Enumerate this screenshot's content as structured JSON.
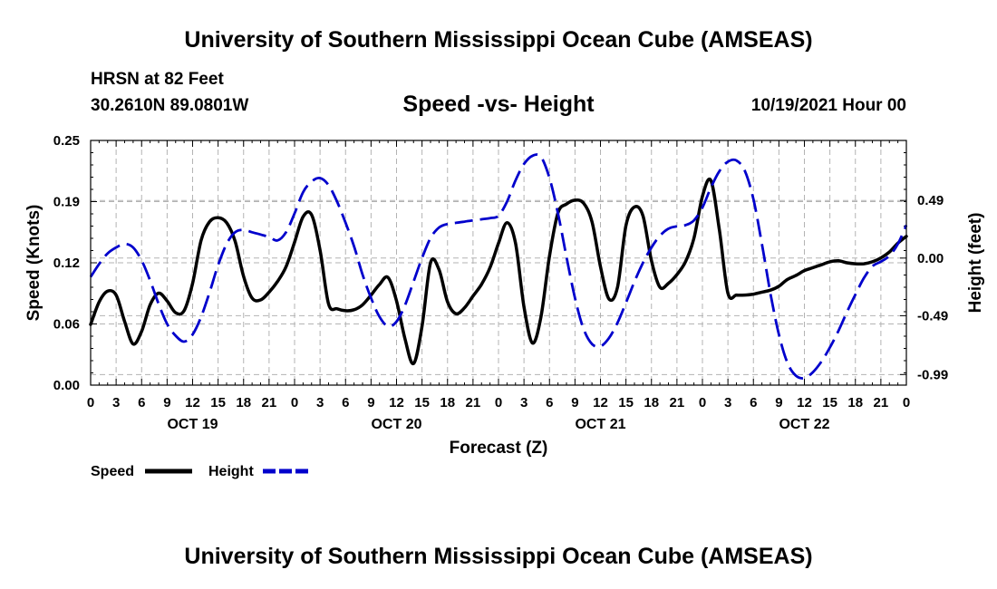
{
  "page": {
    "title": "University of Southern Mississippi Ocean Cube (AMSEAS)",
    "title_bottom": "University of Southern Mississippi Ocean Cube (AMSEAS)",
    "station": "HRSN at 82 Feet",
    "coords": "30.2610N  89.0801W",
    "subtitle": "Speed -vs- Height",
    "datetime": "10/19/2021 Hour 00"
  },
  "chart_data": {
    "type": "line",
    "title": "Speed -vs- Height",
    "xlabel": "Forecast (Z)",
    "ylabel": "Speed (Knots)",
    "y2label": "Height (feet)",
    "x_range_hours": [
      0,
      96
    ],
    "ylim": [
      0,
      0.25
    ],
    "y2lim": [
      -1.08,
      1.0
    ],
    "x_tick_labels": [
      "0",
      "3",
      "6",
      "9",
      "12",
      "15",
      "18",
      "21",
      "0",
      "3",
      "6",
      "9",
      "12",
      "15",
      "18",
      "21",
      "0",
      "3",
      "6",
      "9",
      "12",
      "15",
      "18",
      "21",
      "0",
      "3",
      "6",
      "9",
      "12",
      "15",
      "18",
      "21",
      "0"
    ],
    "day_labels": [
      {
        "label": "OCT 19",
        "hour": 12
      },
      {
        "label": "OCT 20",
        "hour": 36
      },
      {
        "label": "OCT 21",
        "hour": 60
      },
      {
        "label": "OCT 22",
        "hour": 84
      }
    ],
    "y_ticks": [
      "0.00",
      "0.06",
      "0.12",
      "0.19",
      "0.25"
    ],
    "y_tick_values": [
      0.0,
      0.0625,
      0.125,
      0.1875,
      0.25
    ],
    "y2_ticks": [
      "-0.99",
      "-0.49",
      "0.00",
      "0.49"
    ],
    "y2_tick_values": [
      -0.99,
      -0.49,
      0.0,
      0.49
    ],
    "legend": [
      "Speed",
      "Height"
    ],
    "series": [
      {
        "name": "Speed",
        "color": "#000000",
        "axis": "left",
        "x": [
          0,
          1,
          2,
          3,
          4,
          5,
          6,
          7,
          8,
          9,
          10,
          11,
          12,
          13,
          14,
          15,
          16,
          17,
          18,
          19,
          20,
          21,
          22,
          23,
          24,
          25,
          26,
          27,
          28,
          29,
          30,
          31,
          32,
          33,
          34,
          35,
          36,
          37,
          38,
          39,
          40,
          41,
          42,
          43,
          44,
          45,
          46,
          47,
          48,
          49,
          50,
          51,
          52,
          53,
          54,
          55,
          56,
          57,
          58,
          59,
          60,
          61,
          62,
          63,
          64,
          65,
          66,
          67,
          68,
          69,
          70,
          71,
          72,
          73,
          74,
          75,
          76,
          77,
          78,
          79,
          80,
          81,
          82,
          83,
          84,
          85,
          86,
          87,
          88,
          89,
          90,
          91,
          92,
          93,
          94,
          95,
          96
        ],
        "values": [
          0.062,
          0.085,
          0.096,
          0.092,
          0.065,
          0.042,
          0.055,
          0.082,
          0.094,
          0.086,
          0.074,
          0.076,
          0.104,
          0.148,
          0.167,
          0.171,
          0.166,
          0.147,
          0.111,
          0.089,
          0.087,
          0.095,
          0.106,
          0.121,
          0.146,
          0.172,
          0.174,
          0.138,
          0.083,
          0.078,
          0.076,
          0.077,
          0.082,
          0.092,
          0.103,
          0.11,
          0.086,
          0.047,
          0.022,
          0.06,
          0.125,
          0.118,
          0.085,
          0.073,
          0.079,
          0.091,
          0.103,
          0.12,
          0.145,
          0.166,
          0.145,
          0.08,
          0.043,
          0.07,
          0.132,
          0.176,
          0.185,
          0.189,
          0.186,
          0.167,
          0.121,
          0.088,
          0.1,
          0.163,
          0.182,
          0.173,
          0.127,
          0.1,
          0.104,
          0.113,
          0.126,
          0.15,
          0.193,
          0.209,
          0.158,
          0.094,
          0.092,
          0.092,
          0.093,
          0.095,
          0.097,
          0.101,
          0.108,
          0.112,
          0.117,
          0.12,
          0.123,
          0.126,
          0.127,
          0.125,
          0.124,
          0.124,
          0.126,
          0.13,
          0.136,
          0.145,
          0.152
        ]
      },
      {
        "name": "Height",
        "color": "#0000cc",
        "axis": "right",
        "x": [
          0,
          1,
          2,
          3,
          4,
          5,
          6,
          7,
          8,
          9,
          10,
          11,
          12,
          13,
          14,
          15,
          16,
          17,
          18,
          19,
          20,
          21,
          22,
          23,
          24,
          25,
          26,
          27,
          28,
          29,
          30,
          31,
          32,
          33,
          34,
          35,
          36,
          37,
          38,
          39,
          40,
          41,
          42,
          43,
          44,
          45,
          46,
          47,
          48,
          49,
          50,
          51,
          52,
          53,
          54,
          55,
          56,
          57,
          58,
          59,
          60,
          61,
          62,
          63,
          64,
          65,
          66,
          67,
          68,
          69,
          70,
          71,
          72,
          73,
          74,
          75,
          76,
          77,
          78,
          79,
          80,
          81,
          82,
          83,
          84,
          85,
          86,
          87,
          88,
          89,
          90,
          91,
          92,
          93,
          94,
          95,
          96
        ],
        "values": [
          -0.16,
          -0.05,
          0.04,
          0.09,
          0.12,
          0.09,
          -0.02,
          -0.19,
          -0.39,
          -0.56,
          -0.66,
          -0.71,
          -0.65,
          -0.5,
          -0.29,
          -0.06,
          0.12,
          0.22,
          0.24,
          0.22,
          0.2,
          0.18,
          0.15,
          0.22,
          0.38,
          0.56,
          0.65,
          0.68,
          0.62,
          0.48,
          0.3,
          0.1,
          -0.14,
          -0.34,
          -0.5,
          -0.58,
          -0.54,
          -0.4,
          -0.2,
          0.0,
          0.17,
          0.26,
          0.29,
          0.3,
          0.31,
          0.32,
          0.33,
          0.34,
          0.36,
          0.48,
          0.66,
          0.8,
          0.87,
          0.86,
          0.68,
          0.38,
          0.01,
          -0.34,
          -0.6,
          -0.73,
          -0.75,
          -0.68,
          -0.55,
          -0.38,
          -0.2,
          -0.04,
          0.09,
          0.19,
          0.25,
          0.27,
          0.28,
          0.32,
          0.43,
          0.6,
          0.74,
          0.82,
          0.83,
          0.74,
          0.5,
          0.12,
          -0.3,
          -0.65,
          -0.89,
          -1.0,
          -1.02,
          -0.97,
          -0.88,
          -0.76,
          -0.62,
          -0.46,
          -0.31,
          -0.17,
          -0.07,
          -0.03,
          0.02,
          0.12,
          0.28
        ]
      }
    ]
  }
}
